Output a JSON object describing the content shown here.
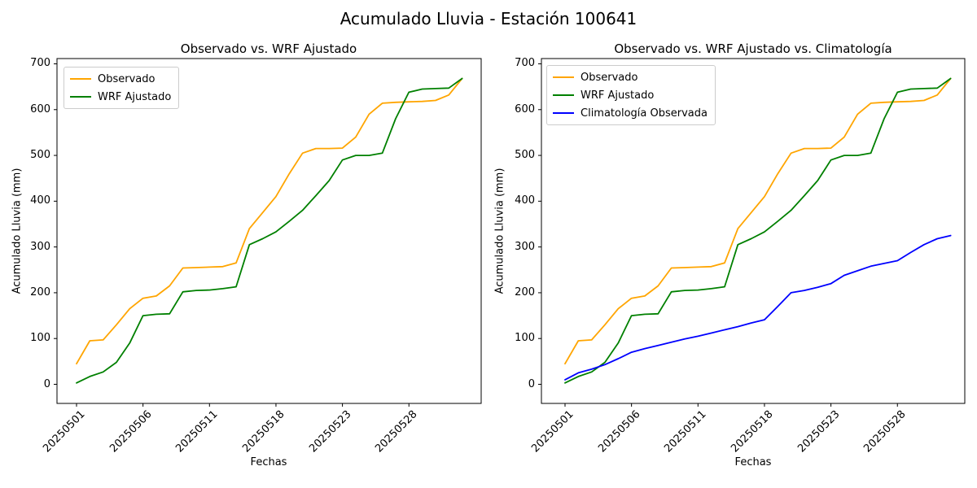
{
  "figure": {
    "suptitle": "Acumulado Lluvia - Estación 100641",
    "background": "#ffffff",
    "text_color": "#000000"
  },
  "colors": {
    "observado": "#FFA500",
    "wrf_ajustado": "#008000",
    "climatologia": "#0000FF",
    "spine": "#000000",
    "legend_border": "#cccccc"
  },
  "chart_data": [
    {
      "type": "line",
      "title": "Observado vs. WRF Ajustado",
      "xlabel": "Fechas",
      "ylabel": "Acumulado Lluvia (mm)",
      "ylim": [
        0,
        700
      ],
      "yticks": [
        0,
        100,
        200,
        300,
        400,
        500,
        600,
        700
      ],
      "x_count": 30,
      "xtick_positions": [
        0,
        5,
        10,
        15,
        20,
        25
      ],
      "xtick_labels": [
        "20250501",
        "20250506",
        "20250511",
        "20250518",
        "20250523",
        "20250528"
      ],
      "grid": false,
      "legend_position": "upper left",
      "series": [
        {
          "name": "Observado",
          "color": "#FFA500",
          "values": [
            45,
            95,
            97,
            130,
            165,
            188,
            193,
            215,
            254,
            255,
            256,
            257,
            265,
            340,
            375,
            410,
            460,
            505,
            515,
            515,
            516,
            540,
            590,
            614,
            616,
            617,
            618,
            620,
            632,
            668
          ]
        },
        {
          "name": "WRF Ajustado",
          "color": "#008000",
          "values": [
            3,
            17,
            27,
            48,
            90,
            150,
            153,
            154,
            202,
            205,
            206,
            209,
            213,
            305,
            318,
            333,
            356,
            380,
            412,
            445,
            490,
            500,
            500,
            505,
            580,
            638,
            645,
            646,
            647,
            668
          ]
        }
      ]
    },
    {
      "type": "line",
      "title": "Observado vs. WRF Ajustado vs. Climatología",
      "xlabel": "Fechas",
      "ylabel": "Acumulado Lluvia (mm)",
      "ylim": [
        0,
        700
      ],
      "yticks": [
        0,
        100,
        200,
        300,
        400,
        500,
        600,
        700
      ],
      "x_count": 30,
      "xtick_positions": [
        0,
        5,
        10,
        15,
        20,
        25
      ],
      "xtick_labels": [
        "20250501",
        "20250506",
        "20250511",
        "20250518",
        "20250523",
        "20250528"
      ],
      "grid": false,
      "legend_position": "upper left",
      "series": [
        {
          "name": "Observado",
          "color": "#FFA500",
          "values": [
            45,
            95,
            97,
            130,
            165,
            188,
            193,
            215,
            254,
            255,
            256,
            257,
            265,
            340,
            375,
            410,
            460,
            505,
            515,
            515,
            516,
            540,
            590,
            614,
            616,
            617,
            618,
            620,
            632,
            668
          ]
        },
        {
          "name": "WRF Ajustado",
          "color": "#008000",
          "values": [
            3,
            17,
            27,
            48,
            90,
            150,
            153,
            154,
            202,
            205,
            206,
            209,
            213,
            305,
            318,
            333,
            356,
            380,
            412,
            445,
            490,
            500,
            500,
            505,
            580,
            638,
            645,
            646,
            647,
            668
          ]
        },
        {
          "name": "Climatología Observada",
          "color": "#0000FF",
          "values": [
            10,
            25,
            33,
            43,
            56,
            70,
            78,
            85,
            92,
            99,
            105,
            112,
            119,
            126,
            134,
            141,
            170,
            200,
            205,
            212,
            220,
            238,
            248,
            258,
            264,
            270,
            288,
            305,
            318,
            325
          ]
        }
      ]
    }
  ]
}
